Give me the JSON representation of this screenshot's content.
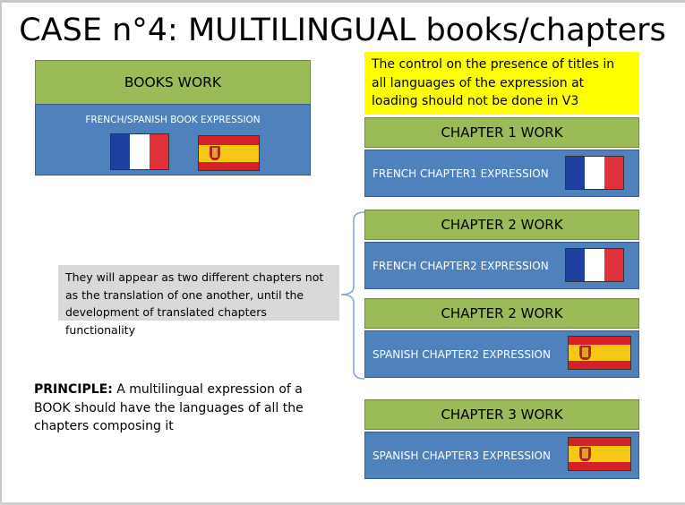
{
  "title": "CASE n°4: MULTILINGUAL books/chapters",
  "book": {
    "work_label": "BOOKS WORK",
    "expression_label": "FRENCH/SPANISH BOOK EXPRESSION"
  },
  "note_yellow": "The control on the presence of titles in all languages of the expression  at loading should not be done in V3",
  "chapters": [
    {
      "work_label": "CHAPTER 1 WORK",
      "expression_label": "FRENCH CHAPTER1 EXPRESSION",
      "flag": "france-flag"
    },
    {
      "work_label": "CHAPTER 2 WORK",
      "expression_label": "FRENCH CHAPTER2 EXPRESSION",
      "flag": "france-flag"
    },
    {
      "work_label": "CHAPTER 2 WORK",
      "expression_label": "SPANISH CHAPTER2  EXPRESSION",
      "flag": "spain-flag"
    },
    {
      "work_label": "CHAPTER 3 WORK",
      "expression_label": "SPANISH CHAPTER3  EXPRESSION",
      "flag": "spain-flag"
    }
  ],
  "note_grey": "They will appear as two different chapters not as the translation of one another, until the development of translated chapters functionality",
  "principle": {
    "bold": "PRINCIPLE:",
    "text": " A multilingual expression  of a BOOK should have the languages of all the chapters composing it"
  },
  "colors": {
    "work_green": "#9bbb59",
    "expression_blue": "#4f81bd",
    "note_yellow": "#ffff00",
    "note_grey": "#d9d9d9"
  }
}
